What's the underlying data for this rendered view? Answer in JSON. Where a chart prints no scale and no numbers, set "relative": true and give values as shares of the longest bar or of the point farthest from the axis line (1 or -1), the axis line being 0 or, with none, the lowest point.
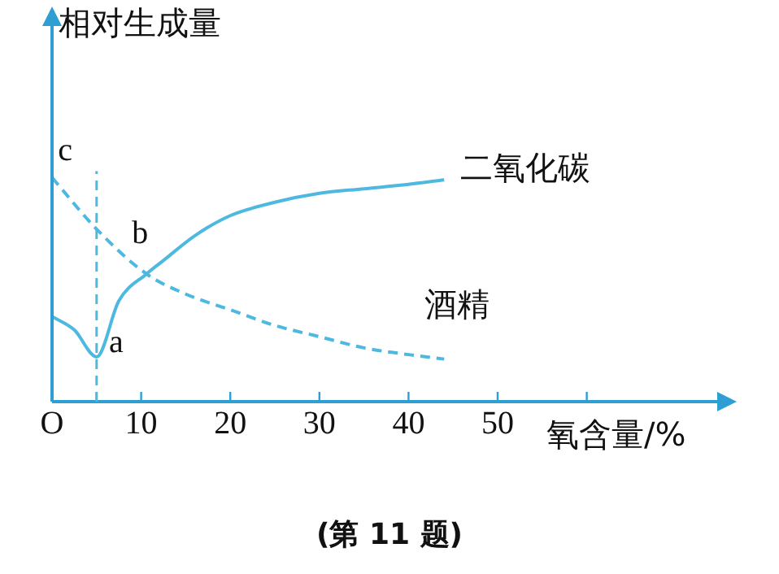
{
  "chart_data": {
    "type": "line",
    "relative": true,
    "ylabel": "相对生成量",
    "xlabel": "氧含量/%",
    "xlim": [
      0,
      75
    ],
    "xticks": [
      {
        "value": 0,
        "label": "O"
      },
      {
        "value": 5,
        "label": null
      },
      10,
      20,
      30,
      40,
      50,
      {
        "value": 60,
        "label": null
      }
    ],
    "series": [
      {
        "name": "二氧化碳",
        "color": "#4db8e0",
        "line_style": "solid",
        "x": [
          0,
          2.5,
          5,
          7.5,
          10.6,
          12.5,
          16,
          20,
          25,
          30,
          35,
          40,
          44
        ],
        "values": [
          0.38,
          0.32,
          0.2,
          0.45,
          0.57,
          0.63,
          0.74,
          0.83,
          0.89,
          0.93,
          0.95,
          0.97,
          0.99
        ]
      },
      {
        "name": "酒精",
        "color": "#4db8e0",
        "line_style": "dashed",
        "x": [
          0,
          5,
          10.6,
          15,
          20,
          25,
          30,
          35,
          40,
          44
        ],
        "values": [
          1,
          0.77,
          0.57,
          0.48,
          0.41,
          0.34,
          0.29,
          0.24,
          0.21,
          0.19
        ]
      }
    ],
    "ref_lines": [
      {
        "axis": "x",
        "value": 5,
        "color": "#4db8e0",
        "line_style": "dashed"
      }
    ],
    "annotations": [
      {
        "text": "a",
        "x": 5,
        "y": 0.2
      },
      {
        "text": "b",
        "x": 10.6,
        "y": 0.57
      },
      {
        "text": "c",
        "x": 0,
        "y": 1
      },
      "(第 11 题)"
    ],
    "grid": false,
    "legend": false,
    "marker": "none"
  }
}
